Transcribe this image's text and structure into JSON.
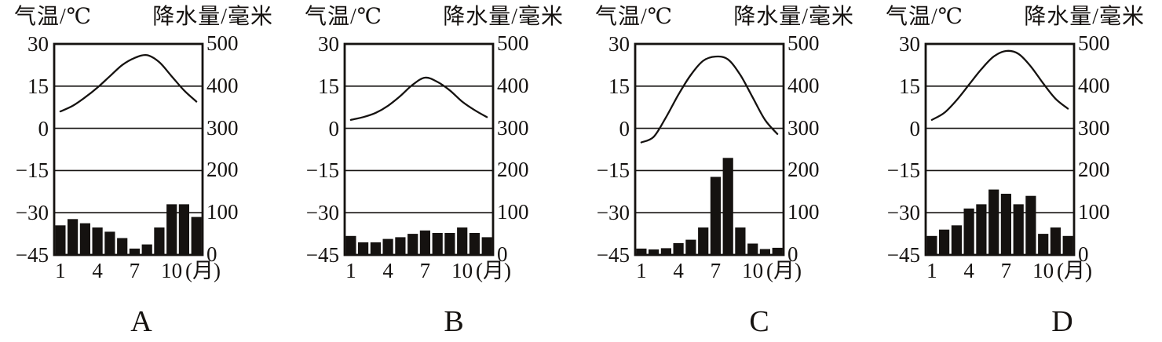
{
  "page": {
    "background_color": "#ffffff",
    "ink_color": "#151210"
  },
  "chart_data": [
    {
      "type": "bar",
      "label": "A",
      "title": "",
      "x": [
        1,
        2,
        3,
        4,
        5,
        6,
        7,
        8,
        9,
        10,
        11,
        12
      ],
      "x_tick_months": [
        1,
        4,
        7,
        10
      ],
      "x_tick_labels": [
        "1",
        "4",
        "7",
        "10"
      ],
      "x_unit": "(月)",
      "grid": "horizontal",
      "legend": false,
      "left_axis": {
        "title": "气温/℃",
        "range": [
          -45,
          30
        ],
        "tick_values": [
          30,
          15,
          0,
          -15,
          -30,
          -45
        ],
        "tick_labels": [
          "30",
          "15",
          "0",
          "−15",
          "−30",
          "−45"
        ]
      },
      "right_axis": {
        "title": "降水量/毫米",
        "range": [
          0,
          500
        ],
        "tick_values": [
          500,
          400,
          300,
          200,
          100,
          0
        ],
        "tick_labels": [
          "500",
          "400",
          "300",
          "200",
          "100",
          "0"
        ]
      },
      "series": [
        {
          "name": "气温",
          "type": "line",
          "axis": "left",
          "values": [
            6,
            8,
            11,
            14.5,
            18.5,
            22.5,
            25,
            26,
            23.5,
            18.5,
            13.5,
            9.5
          ]
        },
        {
          "name": "降水量",
          "type": "bar",
          "axis": "right",
          "values": [
            70,
            85,
            75,
            65,
            55,
            40,
            15,
            25,
            65,
            120,
            120,
            90
          ]
        }
      ]
    },
    {
      "type": "bar",
      "label": "B",
      "title": "",
      "x": [
        1,
        2,
        3,
        4,
        5,
        6,
        7,
        8,
        9,
        10,
        11,
        12
      ],
      "x_tick_months": [
        1,
        4,
        7,
        10
      ],
      "x_tick_labels": [
        "1",
        "4",
        "7",
        "10"
      ],
      "x_unit": "(月)",
      "grid": "horizontal",
      "legend": false,
      "left_axis": {
        "title": "气温/℃",
        "range": [
          -45,
          30
        ],
        "tick_values": [
          30,
          15,
          0,
          -15,
          -30,
          -45
        ],
        "tick_labels": [
          "30",
          "15",
          "0",
          "−15",
          "−30",
          "−45"
        ]
      },
      "right_axis": {
        "title": "降水量/毫米",
        "range": [
          0,
          500
        ],
        "tick_values": [
          500,
          400,
          300,
          200,
          100,
          0
        ],
        "tick_labels": [
          "500",
          "400",
          "300",
          "200",
          "100",
          "0"
        ]
      },
      "series": [
        {
          "name": "气温",
          "type": "line",
          "axis": "left",
          "values": [
            3,
            4,
            5.5,
            8,
            11.5,
            15.5,
            18,
            16.5,
            13.5,
            9.5,
            6.5,
            4
          ]
        },
        {
          "name": "降水量",
          "type": "bar",
          "axis": "right",
          "values": [
            45,
            30,
            30,
            38,
            42,
            50,
            58,
            52,
            52,
            65,
            52,
            42
          ]
        }
      ]
    },
    {
      "type": "bar",
      "label": "C",
      "title": "",
      "x": [
        1,
        2,
        3,
        4,
        5,
        6,
        7,
        8,
        9,
        10,
        11,
        12
      ],
      "x_tick_months": [
        1,
        4,
        7,
        10
      ],
      "x_tick_labels": [
        "1",
        "4",
        "7",
        "10"
      ],
      "x_unit": "(月)",
      "grid": "horizontal",
      "legend": false,
      "left_axis": {
        "title": "气温/℃",
        "range": [
          -45,
          30
        ],
        "tick_values": [
          30,
          15,
          0,
          -15,
          -30,
          -45
        ],
        "tick_labels": [
          "30",
          "15",
          "0",
          "−15",
          "−30",
          "−45"
        ]
      },
      "right_axis": {
        "title": "降水量/毫米",
        "range": [
          0,
          500
        ],
        "tick_values": [
          500,
          400,
          300,
          200,
          100,
          0
        ],
        "tick_labels": [
          "500",
          "400",
          "300",
          "200",
          "100",
          "0"
        ]
      },
      "series": [
        {
          "name": "气温",
          "type": "line",
          "axis": "left",
          "values": [
            -5,
            -3,
            4,
            12,
            19,
            24,
            25.5,
            24.5,
            19,
            11,
            3,
            -2
          ]
        },
        {
          "name": "降水量",
          "type": "bar",
          "axis": "right",
          "values": [
            15,
            13,
            16,
            28,
            36,
            65,
            185,
            230,
            65,
            27,
            14,
            17
          ]
        }
      ]
    },
    {
      "type": "bar",
      "label": "D",
      "title": "",
      "x": [
        1,
        2,
        3,
        4,
        5,
        6,
        7,
        8,
        9,
        10,
        11,
        12
      ],
      "x_tick_months": [
        1,
        4,
        7,
        10
      ],
      "x_tick_labels": [
        "1",
        "4",
        "7",
        "10"
      ],
      "x_unit": "(月)",
      "grid": "horizontal",
      "legend": false,
      "left_axis": {
        "title": "气温/℃",
        "range": [
          -45,
          30
        ],
        "tick_values": [
          30,
          15,
          0,
          -15,
          -30,
          -45
        ],
        "tick_labels": [
          "30",
          "15",
          "0",
          "−15",
          "−30",
          "−45"
        ]
      },
      "right_axis": {
        "title": "降水量/毫米",
        "range": [
          0,
          500
        ],
        "tick_values": [
          500,
          400,
          300,
          200,
          100,
          0
        ],
        "tick_labels": [
          "500",
          "400",
          "300",
          "200",
          "100",
          "0"
        ]
      },
      "series": [
        {
          "name": "气温",
          "type": "line",
          "axis": "left",
          "values": [
            3,
            5.5,
            10,
            15.5,
            21,
            25.5,
            27.5,
            26.5,
            22,
            16,
            10.5,
            7
          ]
        },
        {
          "name": "降水量",
          "type": "bar",
          "axis": "right",
          "values": [
            45,
            60,
            70,
            110,
            120,
            155,
            145,
            120,
            140,
            50,
            65,
            45
          ]
        }
      ]
    }
  ]
}
